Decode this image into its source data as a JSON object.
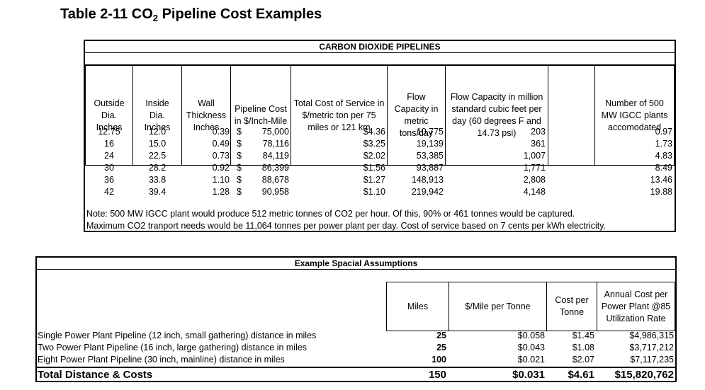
{
  "title": {
    "prefix": "Table 2-11 CO",
    "sub": "2",
    "suffix": " Pipeline Cost Examples"
  },
  "pipelines": {
    "caption": "CARBON DIOXIDE PIPELINES",
    "headers": {
      "outside": "Outside Dia. Inches",
      "inside": "Inside Dia. Inches",
      "wall": "Wall Thickness Inches",
      "cost": "Pipeline Cost in $/Inch-Mile",
      "service": "Total Cost of Service in $/metric ton per 75 miles or 121 km",
      "flow": "Flow Capacity in metric tons/day",
      "flowcf": "Flow Capacity in million standard cubic feet per day (60 degrees F and 14.73 psi)",
      "plants": "Number of 500 MW IGCC plants accomodated"
    },
    "rows": [
      {
        "outside": "12.75",
        "inside": "12.0",
        "wall": "0.39",
        "dollar": "$",
        "cost": "75,000",
        "service": "$4.36",
        "flow": "10,775",
        "flowcf": "203",
        "plants": "0.97"
      },
      {
        "outside": "16",
        "inside": "15.0",
        "wall": "0.49",
        "dollar": "$",
        "cost": "78,116",
        "service": "$3.25",
        "flow": "19,139",
        "flowcf": "361",
        "plants": "1.73"
      },
      {
        "outside": "24",
        "inside": "22.5",
        "wall": "0.73",
        "dollar": "$",
        "cost": "84,119",
        "service": "$2.02",
        "flow": "53,385",
        "flowcf": "1,007",
        "plants": "4.83"
      },
      {
        "outside": "30",
        "inside": "28.2",
        "wall": "0.92",
        "dollar": "$",
        "cost": "86,399",
        "service": "$1.56",
        "flow": "93,887",
        "flowcf": "1,771",
        "plants": "8.49"
      },
      {
        "outside": "36",
        "inside": "33.8",
        "wall": "1.10",
        "dollar": "$",
        "cost": "88,678",
        "service": "$1.27",
        "flow": "148,913",
        "flowcf": "2,808",
        "plants": "13.46"
      },
      {
        "outside": "42",
        "inside": "39.4",
        "wall": "1.28",
        "dollar": "$",
        "cost": "90,958",
        "service": "$1.10",
        "flow": "219,942",
        "flowcf": "4,148",
        "plants": "19.88"
      }
    ],
    "note_line1": "Note: 500 MW IGCC plant would produce 512 metric tonnes of CO2 per hour.  Of this, 90% or 461 tonnes would be captured.",
    "note_line2": "Maximum CO2 tranport needs would be 11,064 tonnes per power plant per day. Cost of service based on 7 cents per kWh electricity."
  },
  "assumptions": {
    "caption": "Example Spacial Assumptions",
    "headers": {
      "miles": "Miles",
      "per_mile": "$/Mile per Tonne",
      "per_tonne": "Cost per Tonne",
      "annual": "Annual Cost per Power Plant @85 Utilization Rate"
    },
    "rows": [
      {
        "label": "Single Power Plant Pipeline (12 inch, small gathering) distance in miles",
        "miles": "25",
        "per_mile": "$0.058",
        "per_tonne": "$1.45",
        "annual": "$4,986,315"
      },
      {
        "label": "Two Power Plant Pipeline (16 inch, large gathering) distance in miles",
        "miles": "25",
        "per_mile": "$0.043",
        "per_tonne": "$1.08",
        "annual": "$3,717,212"
      },
      {
        "label": "Eight Power Plant Pipeline (30 inch, mainline) distance in miles",
        "miles": "100",
        "per_mile": "$0.021",
        "per_tonne": "$2.07",
        "annual": "$7,117,235"
      }
    ],
    "total": {
      "label": "Total Distance & Costs",
      "miles": "150",
      "per_mile": "$0.031",
      "per_tonne": "$4.61",
      "annual": "$15,820,762"
    }
  }
}
